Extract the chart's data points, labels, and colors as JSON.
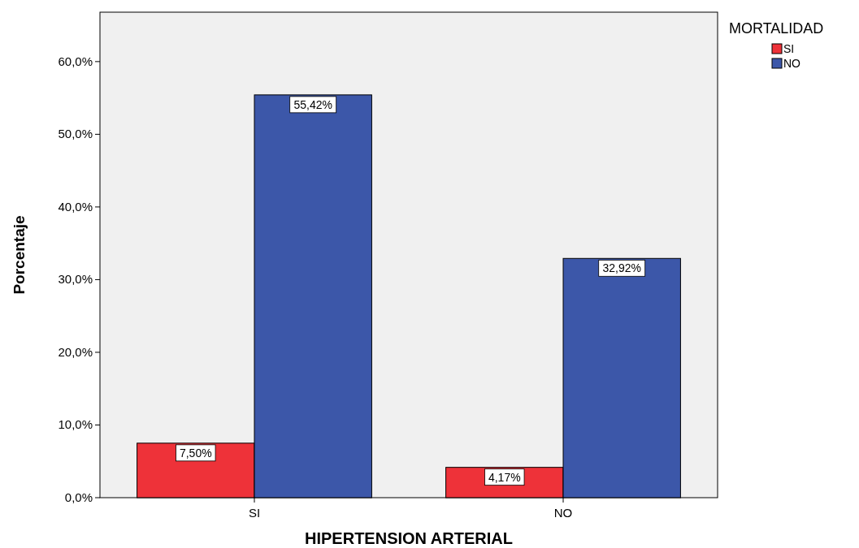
{
  "chart_data": {
    "type": "bar",
    "xlabel": "HIPERTENSION ARTERIAL",
    "ylabel": "Porcentaje",
    "legend_title": "MORTALIDAD",
    "categories": [
      "SI",
      "NO"
    ],
    "series": [
      {
        "name": "SI",
        "color": "#ee3239",
        "values": [
          7.5,
          4.17
        ],
        "value_labels": [
          "7,50%",
          "4,17%"
        ]
      },
      {
        "name": "NO",
        "color": "#3c57a9",
        "values": [
          55.42,
          32.92
        ],
        "value_labels": [
          "55,42%",
          "32,92%"
        ]
      }
    ],
    "ylim": [
      0,
      66.8
    ],
    "yticks": [
      {
        "value": 0,
        "label": "0,0%"
      },
      {
        "value": 10,
        "label": "10,0%"
      },
      {
        "value": 20,
        "label": "20,0%"
      },
      {
        "value": 30,
        "label": "30,0%"
      },
      {
        "value": 40,
        "label": "40,0%"
      },
      {
        "value": 50,
        "label": "50,0%"
      },
      {
        "value": 60,
        "label": "60,0%"
      }
    ],
    "legend": "top right",
    "grid": false
  }
}
